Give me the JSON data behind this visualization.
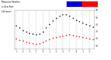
{
  "title_parts": [
    "Milwaukee Weather",
    "vs Dew Point",
    "(24 Hours)"
  ],
  "background_color": "#ffffff",
  "plot_bg": "#ffffff",
  "grid_color": "#aaaaaa",
  "temp_x": [
    1,
    2,
    3,
    4,
    5,
    6,
    7,
    8,
    9,
    10,
    11,
    12,
    13,
    14,
    15,
    16,
    17,
    18,
    19,
    20,
    21,
    22,
    23,
    24
  ],
  "temp_y": [
    38,
    35,
    32,
    30,
    28,
    27,
    26,
    27,
    30,
    35,
    40,
    45,
    49,
    52,
    54,
    54,
    52,
    49,
    46,
    44,
    42,
    40,
    38,
    36
  ],
  "dew_x": [
    1,
    2,
    3,
    4,
    5,
    6,
    7,
    8,
    9,
    10,
    11,
    12,
    13,
    14,
    15,
    16,
    17,
    18,
    19,
    20,
    21,
    22,
    23,
    24
  ],
  "dew_y": [
    20,
    18,
    17,
    15,
    14,
    13,
    12,
    13,
    15,
    17,
    19,
    21,
    22,
    23,
    24,
    25,
    26,
    25,
    24,
    23,
    22,
    21,
    20,
    19
  ],
  "ylim": [
    5,
    60
  ],
  "xlim": [
    0.5,
    24.5
  ],
  "ytick_vals": [
    10,
    20,
    30,
    40,
    50,
    60
  ],
  "xtick_vals": [
    1,
    3,
    5,
    7,
    9,
    11,
    13,
    15,
    17,
    19,
    21,
    23
  ],
  "xtick_labels": [
    "1",
    "3",
    "5",
    "7",
    "9",
    "1",
    "3",
    "5",
    "7",
    "9",
    "1",
    "3"
  ],
  "temp_color": "#000000",
  "dew_color": "#ff0000",
  "blue_color": "#0000cc",
  "red_color": "#ff0000",
  "marker_size": 1.5,
  "legend_bar_blue": "#0000dd",
  "legend_bar_red": "#ff0000"
}
